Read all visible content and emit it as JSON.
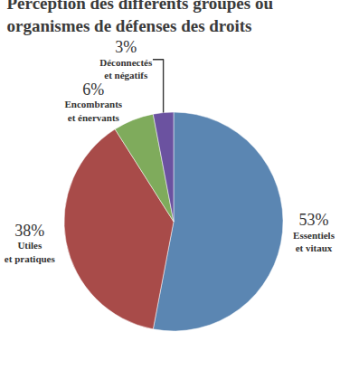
{
  "chart_data": {
    "type": "pie",
    "title": "Perception des différents groupes ou organismes de défenses des droits",
    "categories": [
      "Essentiels et vitaux",
      "Utiles et pratiques",
      "Encombrants et énervants",
      "Déconnectés et négatifs"
    ],
    "values": [
      53,
      38,
      6,
      3
    ],
    "value_labels": [
      "53%",
      "38%",
      "6%",
      "3%"
    ],
    "colors": [
      "#5b86b2",
      "#a84b49",
      "#7fab5c",
      "#6b52a0"
    ],
    "data_labels": true
  }
}
